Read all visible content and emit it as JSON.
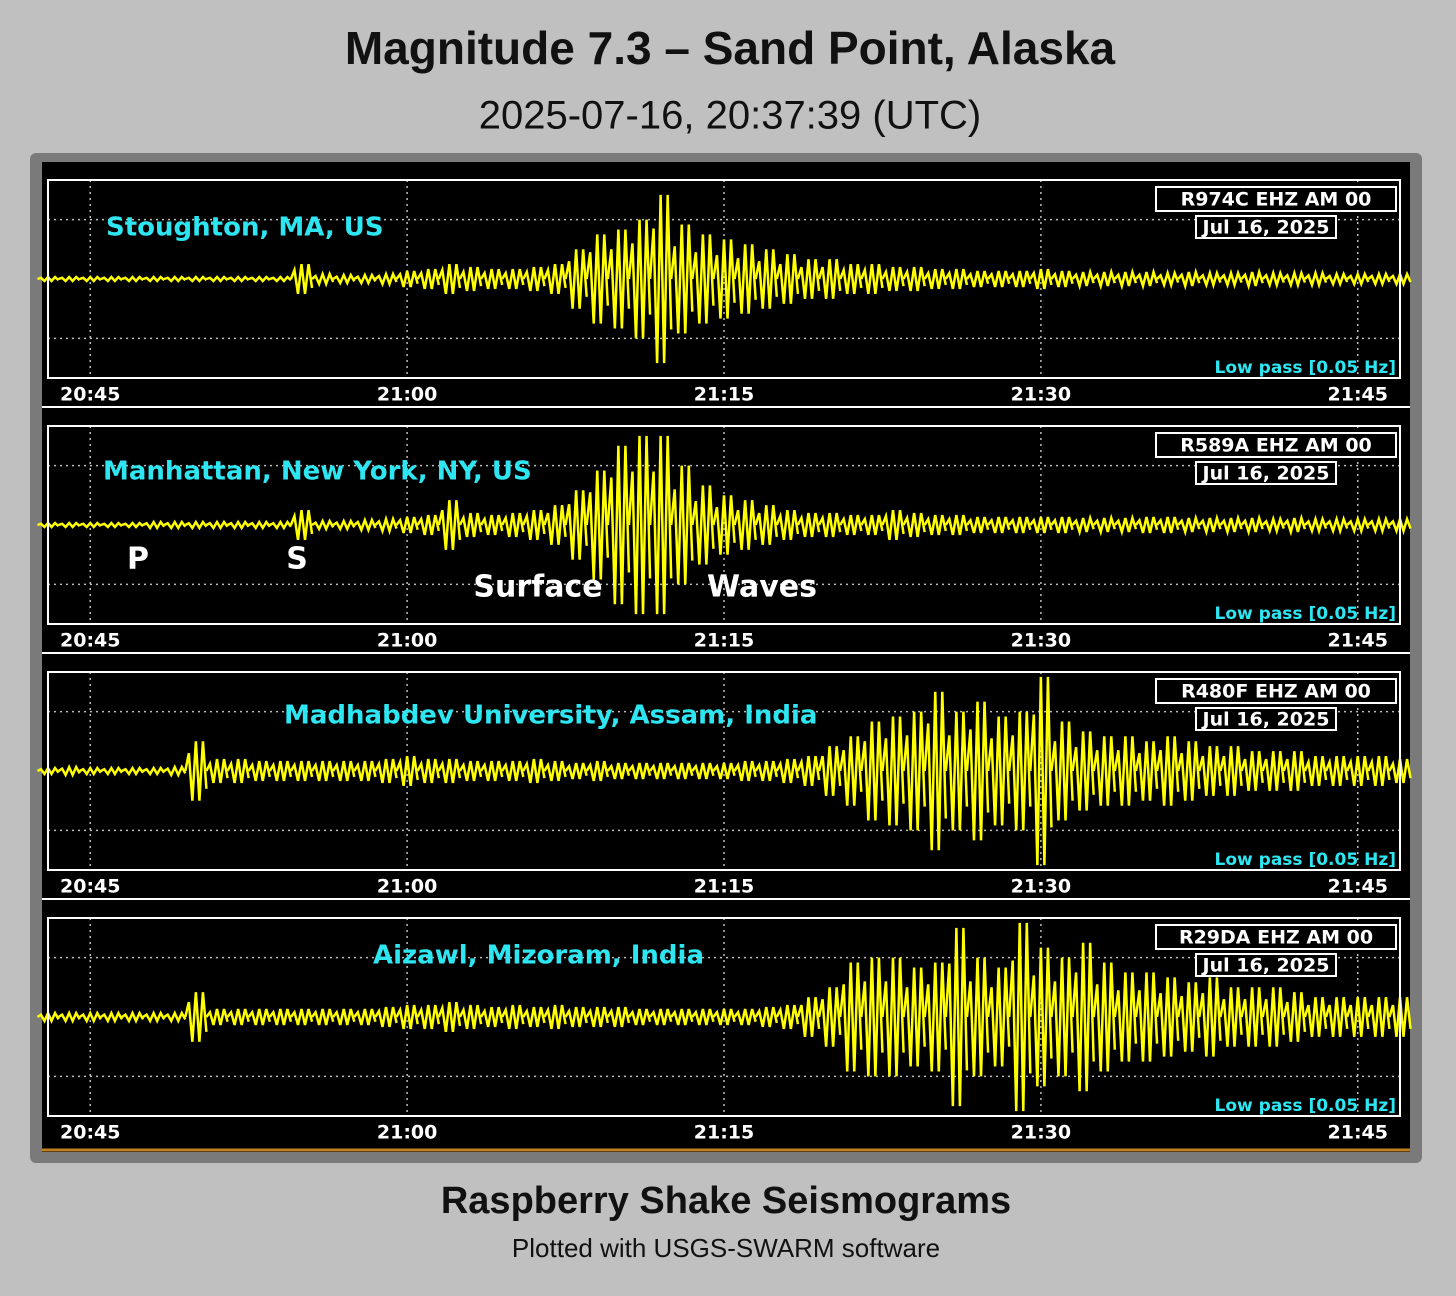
{
  "title": "Magnitude 7.3 – Sand Point, Alaska",
  "subtitle": "2025-07-16, 20:37:39 (UTC)",
  "footer": {
    "title": "Raspberry Shake Seismograms",
    "subtitle": "Plotted with USGS-SWARM software"
  },
  "chart_data": [
    {
      "type": "line",
      "title": "Stoughton, MA, US",
      "station": "R974C EHZ AM 00",
      "date": "Jul 16, 2025",
      "filter": "Low pass [0.05 Hz]",
      "color": "#ffff00",
      "grid": true,
      "xlim": [
        "20:43",
        "21:47"
      ],
      "xticks": [
        "20:45",
        "21:00",
        "21:15",
        "21:30",
        "21:45"
      ],
      "ylim": [
        -1,
        1
      ],
      "x": [
        "20:43",
        "20:44",
        "20:45",
        "20:46",
        "20:47",
        "20:48",
        "20:49",
        "20:50",
        "20:51",
        "20:52",
        "20:53",
        "20:54",
        "20:55",
        "20:56",
        "20:57",
        "20:58",
        "20:59",
        "21:00",
        "21:01",
        "21:02",
        "21:03",
        "21:04",
        "21:05",
        "21:06",
        "21:07",
        "21:08",
        "21:09",
        "21:10",
        "21:11",
        "21:12",
        "21:13",
        "21:14",
        "21:15",
        "21:16",
        "21:17",
        "21:18",
        "21:19",
        "21:20",
        "21:21",
        "21:22",
        "21:23",
        "21:24",
        "21:25",
        "21:26",
        "21:27",
        "21:28",
        "21:29",
        "21:30",
        "21:31",
        "21:32",
        "21:33",
        "21:34",
        "21:35",
        "21:36",
        "21:37",
        "21:38",
        "21:39",
        "21:40",
        "21:41",
        "21:42",
        "21:43",
        "21:44",
        "21:45",
        "21:46",
        "21:47"
      ],
      "values": [
        0.02,
        0.02,
        0.02,
        0.02,
        0.02,
        0.02,
        0.02,
        0.02,
        0.02,
        0.02,
        0.02,
        0.02,
        0.15,
        0.05,
        0.04,
        0.04,
        0.05,
        0.08,
        0.1,
        0.15,
        0.12,
        0.1,
        0.1,
        0.12,
        0.15,
        0.3,
        0.45,
        0.5,
        0.6,
        0.85,
        0.55,
        0.45,
        0.4,
        0.35,
        0.3,
        0.25,
        0.2,
        0.2,
        0.15,
        0.15,
        0.12,
        0.12,
        0.1,
        0.1,
        0.08,
        0.08,
        0.08,
        0.1,
        0.08,
        0.07,
        0.07,
        0.07,
        0.07,
        0.06,
        0.07,
        0.06,
        0.06,
        0.07,
        0.06,
        0.06,
        0.06,
        0.05,
        0.05,
        0.05,
        0.05
      ]
    },
    {
      "type": "line",
      "title": "Manhattan, New York, NY, US",
      "station": "R589A EHZ AM 00",
      "date": "Jul 16, 2025",
      "filter": "Low pass [0.05 Hz]",
      "color": "#ffff00",
      "grid": true,
      "xlim": [
        "20:43",
        "21:47"
      ],
      "xticks": [
        "20:45",
        "21:00",
        "21:15",
        "21:30",
        "21:45"
      ],
      "ylim": [
        -1,
        1
      ],
      "annotations": [
        "P",
        "S",
        "Surface",
        "Waves"
      ],
      "x": [
        "20:43",
        "20:44",
        "20:45",
        "20:46",
        "20:47",
        "20:48",
        "20:49",
        "20:50",
        "20:51",
        "20:52",
        "20:53",
        "20:54",
        "20:55",
        "20:56",
        "20:57",
        "20:58",
        "20:59",
        "21:00",
        "21:01",
        "21:02",
        "21:03",
        "21:04",
        "21:05",
        "21:06",
        "21:07",
        "21:08",
        "21:09",
        "21:10",
        "21:11",
        "21:12",
        "21:13",
        "21:14",
        "21:15",
        "21:16",
        "21:17",
        "21:18",
        "21:19",
        "21:20",
        "21:21",
        "21:22",
        "21:23",
        "21:24",
        "21:25",
        "21:26",
        "21:27",
        "21:28",
        "21:29",
        "21:30",
        "21:31",
        "21:32",
        "21:33",
        "21:34",
        "21:35",
        "21:36",
        "21:37",
        "21:38",
        "21:39",
        "21:40",
        "21:41",
        "21:42",
        "21:43",
        "21:44",
        "21:45",
        "21:46",
        "21:47"
      ],
      "values": [
        0.02,
        0.02,
        0.02,
        0.02,
        0.02,
        0.03,
        0.03,
        0.03,
        0.03,
        0.03,
        0.03,
        0.03,
        0.15,
        0.04,
        0.04,
        0.05,
        0.06,
        0.08,
        0.1,
        0.25,
        0.12,
        0.1,
        0.12,
        0.15,
        0.2,
        0.35,
        0.55,
        0.8,
        0.9,
        0.9,
        0.6,
        0.4,
        0.3,
        0.25,
        0.2,
        0.15,
        0.12,
        0.12,
        0.1,
        0.1,
        0.15,
        0.12,
        0.1,
        0.1,
        0.08,
        0.08,
        0.08,
        0.08,
        0.08,
        0.07,
        0.07,
        0.07,
        0.08,
        0.08,
        0.07,
        0.07,
        0.07,
        0.07,
        0.06,
        0.07,
        0.06,
        0.06,
        0.06,
        0.06,
        0.06
      ]
    },
    {
      "type": "line",
      "title": "Madhabdev University, Assam, India",
      "station": "R480F EHZ AM 00",
      "date": "Jul 16, 2025",
      "filter": "Low pass [0.05 Hz]",
      "color": "#ffff00",
      "grid": true,
      "xlim": [
        "20:43",
        "21:47"
      ],
      "xticks": [
        "20:45",
        "21:00",
        "21:15",
        "21:30",
        "21:45"
      ],
      "ylim": [
        -1,
        1
      ],
      "x": [
        "20:43",
        "20:44",
        "20:45",
        "20:46",
        "20:47",
        "20:48",
        "20:49",
        "20:50",
        "20:51",
        "20:52",
        "20:53",
        "20:54",
        "20:55",
        "20:56",
        "20:57",
        "20:58",
        "20:59",
        "21:00",
        "21:01",
        "21:02",
        "21:03",
        "21:04",
        "21:05",
        "21:06",
        "21:07",
        "21:08",
        "21:09",
        "21:10",
        "21:11",
        "21:12",
        "21:13",
        "21:14",
        "21:15",
        "21:16",
        "21:17",
        "21:18",
        "21:19",
        "21:20",
        "21:21",
        "21:22",
        "21:23",
        "21:24",
        "21:25",
        "21:26",
        "21:27",
        "21:28",
        "21:29",
        "21:30",
        "21:31",
        "21:32",
        "21:33",
        "21:34",
        "21:35",
        "21:36",
        "21:37",
        "21:38",
        "21:39",
        "21:40",
        "21:41",
        "21:42",
        "21:43",
        "21:44",
        "21:45",
        "21:46",
        "21:47"
      ],
      "values": [
        0.03,
        0.04,
        0.03,
        0.03,
        0.03,
        0.03,
        0.04,
        0.3,
        0.12,
        0.12,
        0.1,
        0.1,
        0.1,
        0.1,
        0.1,
        0.1,
        0.12,
        0.15,
        0.12,
        0.12,
        0.1,
        0.1,
        0.1,
        0.12,
        0.1,
        0.08,
        0.1,
        0.08,
        0.08,
        0.08,
        0.08,
        0.08,
        0.08,
        0.1,
        0.1,
        0.12,
        0.15,
        0.25,
        0.35,
        0.5,
        0.55,
        0.6,
        0.8,
        0.6,
        0.7,
        0.55,
        0.6,
        0.95,
        0.5,
        0.4,
        0.35,
        0.35,
        0.3,
        0.35,
        0.3,
        0.25,
        0.25,
        0.2,
        0.2,
        0.2,
        0.15,
        0.15,
        0.15,
        0.15,
        0.12
      ]
    },
    {
      "type": "line",
      "title": "Aizawl, Mizoram, India",
      "station": "R29DA EHZ AM 00",
      "date": "Jul 16, 2025",
      "filter": "Low pass [0.05 Hz]",
      "color": "#ffff00",
      "grid": true,
      "xlim": [
        "20:43",
        "21:47"
      ],
      "xticks": [
        "20:45",
        "21:00",
        "21:15",
        "21:30",
        "21:45"
      ],
      "ylim": [
        -1,
        1
      ],
      "x": [
        "20:43",
        "20:44",
        "20:45",
        "20:46",
        "20:47",
        "20:48",
        "20:49",
        "20:50",
        "20:51",
        "20:52",
        "20:53",
        "20:54",
        "20:55",
        "20:56",
        "20:57",
        "20:58",
        "20:59",
        "21:00",
        "21:01",
        "21:02",
        "21:03",
        "21:04",
        "21:05",
        "21:06",
        "21:07",
        "21:08",
        "21:09",
        "21:10",
        "21:11",
        "21:12",
        "21:13",
        "21:14",
        "21:15",
        "21:16",
        "21:17",
        "21:18",
        "21:19",
        "21:20",
        "21:21",
        "21:22",
        "21:23",
        "21:24",
        "21:25",
        "21:26",
        "21:27",
        "21:28",
        "21:29",
        "21:30",
        "21:31",
        "21:32",
        "21:33",
        "21:34",
        "21:35",
        "21:36",
        "21:37",
        "21:38",
        "21:39",
        "21:40",
        "21:41",
        "21:42",
        "21:43",
        "21:44",
        "21:45",
        "21:46",
        "21:47"
      ],
      "values": [
        0.04,
        0.04,
        0.04,
        0.04,
        0.04,
        0.04,
        0.04,
        0.25,
        0.08,
        0.08,
        0.08,
        0.08,
        0.08,
        0.08,
        0.08,
        0.08,
        0.1,
        0.12,
        0.12,
        0.15,
        0.12,
        0.1,
        0.12,
        0.1,
        0.12,
        0.1,
        0.1,
        0.1,
        0.08,
        0.08,
        0.08,
        0.08,
        0.08,
        0.08,
        0.1,
        0.12,
        0.2,
        0.3,
        0.55,
        0.6,
        0.6,
        0.5,
        0.55,
        0.9,
        0.6,
        0.5,
        0.95,
        0.7,
        0.6,
        0.75,
        0.55,
        0.45,
        0.45,
        0.4,
        0.35,
        0.4,
        0.3,
        0.3,
        0.3,
        0.25,
        0.2,
        0.2,
        0.2,
        0.2,
        0.2
      ]
    }
  ]
}
